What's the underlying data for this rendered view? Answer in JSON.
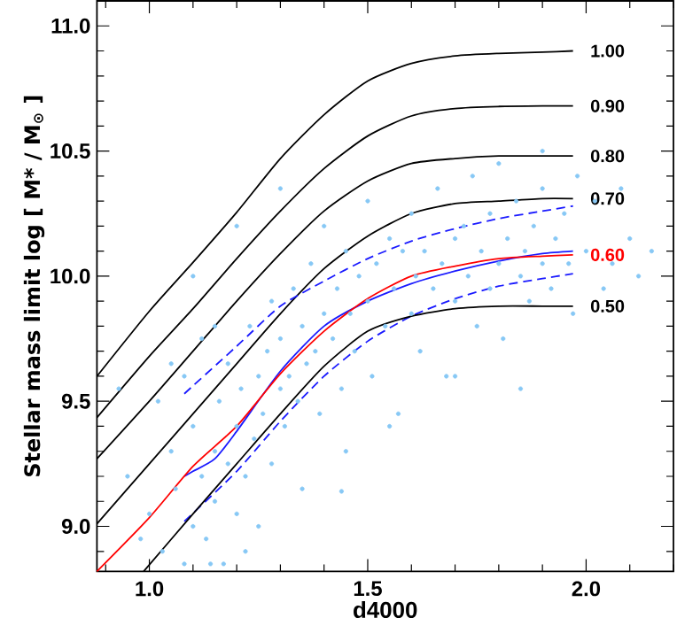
{
  "chart_data": {
    "type": "scatter",
    "xlabel": "d4000",
    "ylabel": "Stellar mass limit   log [ M* / M$_{⊙}$ ]",
    "xlim": [
      0.88,
      2.2
    ],
    "ylim": [
      8.82,
      11.1
    ],
    "xticks": [
      {
        "value": 0.9,
        "label": null
      },
      {
        "value": 1.0,
        "label": "1.0"
      },
      {
        "value": 1.1,
        "label": null
      },
      {
        "value": 1.2,
        "label": null
      },
      {
        "value": 1.3,
        "label": null
      },
      {
        "value": 1.4,
        "label": null
      },
      {
        "value": 1.5,
        "label": "1.5"
      },
      {
        "value": 1.6,
        "label": null
      },
      {
        "value": 1.7,
        "label": null
      },
      {
        "value": 1.8,
        "label": null
      },
      {
        "value": 1.9,
        "label": null
      },
      {
        "value": 2.0,
        "label": "2.0"
      },
      {
        "value": 2.1,
        "label": null
      },
      {
        "value": 2.2,
        "label": null
      }
    ],
    "yticks": [
      {
        "value": 8.9,
        "label": null
      },
      {
        "value": 9.0,
        "label": "9.0"
      },
      {
        "value": 9.1,
        "label": null
      },
      {
        "value": 9.2,
        "label": null
      },
      {
        "value": 9.3,
        "label": null
      },
      {
        "value": 9.4,
        "label": null
      },
      {
        "value": 9.5,
        "label": "9.5"
      },
      {
        "value": 9.6,
        "label": null
      },
      {
        "value": 9.7,
        "label": null
      },
      {
        "value": 9.8,
        "label": null
      },
      {
        "value": 9.9,
        "label": null
      },
      {
        "value": 10.0,
        "label": "10.0"
      },
      {
        "value": 10.1,
        "label": null
      },
      {
        "value": 10.2,
        "label": null
      },
      {
        "value": 10.3,
        "label": null
      },
      {
        "value": 10.4,
        "label": null
      },
      {
        "value": 10.5,
        "label": "10.5"
      },
      {
        "value": 10.6,
        "label": null
      },
      {
        "value": 10.7,
        "label": null
      },
      {
        "value": 10.8,
        "label": null
      },
      {
        "value": 10.9,
        "label": null
      },
      {
        "value": 11.0,
        "label": "11.0"
      }
    ],
    "grid": false,
    "series": [
      {
        "color": "#87c8f5",
        "marker": "circle",
        "x": [
          0.95,
          0.98,
          1.0,
          1.02,
          1.03,
          1.05,
          1.06,
          1.08,
          1.08,
          1.1,
          1.1,
          1.12,
          1.12,
          1.13,
          1.15,
          1.15,
          1.16,
          1.17,
          1.18,
          1.18,
          1.2,
          1.2,
          1.21,
          1.22,
          1.23,
          1.24,
          1.25,
          1.25,
          1.26,
          1.27,
          1.28,
          1.28,
          1.3,
          1.3,
          1.31,
          1.32,
          1.33,
          1.34,
          1.35,
          1.35,
          1.36,
          1.37,
          1.38,
          1.39,
          1.4,
          1.4,
          1.42,
          1.43,
          1.44,
          1.44,
          1.45,
          1.46,
          1.47,
          1.48,
          1.5,
          1.5,
          1.51,
          1.52,
          1.54,
          1.55,
          1.56,
          1.57,
          1.58,
          1.6,
          1.6,
          1.61,
          1.62,
          1.63,
          1.65,
          1.66,
          1.67,
          1.68,
          1.7,
          1.7,
          1.72,
          1.73,
          1.74,
          1.75,
          1.76,
          1.78,
          1.78,
          1.8,
          1.8,
          1.81,
          1.82,
          1.84,
          1.85,
          1.86,
          1.87,
          1.88,
          1.9,
          1.9,
          1.92,
          1.93,
          1.95,
          1.96,
          1.97,
          1.98,
          2.0,
          2.02,
          2.04,
          2.06,
          2.08,
          2.1,
          2.12,
          2.15,
          1.15,
          1.05,
          0.93,
          1.1,
          1.2,
          1.3,
          1.45,
          1.55,
          1.7,
          1.85,
          1.9,
          1.14,
          1.22
        ],
        "values": [
          9.2,
          8.95,
          9.05,
          9.5,
          8.9,
          9.3,
          9.15,
          8.85,
          9.6,
          9.0,
          9.4,
          9.2,
          9.75,
          8.95,
          9.3,
          9.1,
          9.5,
          8.85,
          9.25,
          9.65,
          9.4,
          9.05,
          9.55,
          9.2,
          9.8,
          9.35,
          9.6,
          9.0,
          9.45,
          9.7,
          9.25,
          9.9,
          9.55,
          9.75,
          9.4,
          9.6,
          9.95,
          9.5,
          9.8,
          9.15,
          9.65,
          10.05,
          9.7,
          9.45,
          9.85,
          10.2,
          9.75,
          9.95,
          9.55,
          9.14,
          10.1,
          9.85,
          9.7,
          10.0,
          9.9,
          10.3,
          9.6,
          10.05,
          9.8,
          10.15,
          9.95,
          9.45,
          10.1,
          9.85,
          10.25,
          10.0,
          9.7,
          10.1,
          9.95,
          10.35,
          10.05,
          9.6,
          10.15,
          9.9,
          10.2,
          10.0,
          10.4,
          9.8,
          10.1,
          10.25,
          9.95,
          10.05,
          10.45,
          9.75,
          10.15,
          10.3,
          10.0,
          10.1,
          9.9,
          10.2,
          10.35,
          10.05,
          9.95,
          10.15,
          10.25,
          10.05,
          9.85,
          10.4,
          10.1,
          10.3,
          9.95,
          10.05,
          10.35,
          10.15,
          10.0,
          10.1,
          9.8,
          9.65,
          9.55,
          10.0,
          10.2,
          10.35,
          9.3,
          9.4,
          9.6,
          9.55,
          10.5,
          8.85,
          8.9
        ]
      },
      {
        "type": "line",
        "name": "1.00",
        "color": "#000000",
        "marker": "none",
        "line_style": "solid",
        "x": [
          0.88,
          1.0,
          1.1,
          1.2,
          1.3,
          1.4,
          1.5,
          1.6,
          1.7,
          1.8,
          1.9,
          1.97
        ],
        "values": [
          9.6,
          9.86,
          10.055,
          10.255,
          10.47,
          10.645,
          10.78,
          10.85,
          10.88,
          10.89,
          10.895,
          10.9
        ]
      },
      {
        "type": "line",
        "name": "0.90",
        "color": "#000000",
        "marker": "none",
        "line_style": "solid",
        "x": [
          0.88,
          1.0,
          1.1,
          1.2,
          1.3,
          1.4,
          1.5,
          1.6,
          1.7,
          1.8,
          1.9,
          1.97
        ],
        "values": [
          9.435,
          9.68,
          9.87,
          10.07,
          10.26,
          10.43,
          10.56,
          10.64,
          10.67,
          10.678,
          10.68,
          10.68
        ]
      },
      {
        "type": "line",
        "name": "0.80",
        "color": "#000000",
        "marker": "none",
        "line_style": "solid",
        "x": [
          0.88,
          1.0,
          1.1,
          1.2,
          1.3,
          1.4,
          1.5,
          1.6,
          1.7,
          1.8,
          1.9,
          1.97
        ],
        "values": [
          9.27,
          9.5,
          9.7,
          9.9,
          10.09,
          10.26,
          10.38,
          10.45,
          10.47,
          10.48,
          10.48,
          10.48
        ]
      },
      {
        "type": "line",
        "name": "0.70",
        "color": "#000000",
        "marker": "none",
        "line_style": "solid",
        "x": [
          0.88,
          1.0,
          1.1,
          1.2,
          1.3,
          1.4,
          1.5,
          1.6,
          1.7,
          1.8,
          1.9,
          1.97
        ],
        "values": [
          9.01,
          9.25,
          9.45,
          9.65,
          9.85,
          10.03,
          10.16,
          10.25,
          10.29,
          10.3,
          10.31,
          10.31
        ]
      },
      {
        "type": "line",
        "color": "#1a1aff",
        "marker": "none",
        "line_style": "dashed",
        "x": [
          1.08,
          1.2,
          1.3,
          1.4,
          1.5,
          1.6,
          1.7,
          1.8,
          1.9,
          1.97
        ],
        "values": [
          9.53,
          9.72,
          9.88,
          9.98,
          10.07,
          10.14,
          10.19,
          10.23,
          10.26,
          10.28
        ]
      },
      {
        "type": "line",
        "color": "#1a1aff",
        "marker": "none",
        "line_style": "dashed",
        "x": [
          1.08,
          1.2,
          1.3,
          1.4,
          1.5,
          1.6,
          1.7,
          1.8,
          1.9,
          1.97
        ],
        "values": [
          9.02,
          9.22,
          9.42,
          9.6,
          9.74,
          9.84,
          9.91,
          9.96,
          9.99,
          10.01
        ]
      },
      {
        "type": "line",
        "color": "#1a1aff",
        "marker": "none",
        "line_style": "solid",
        "x": [
          1.08,
          1.1,
          1.15,
          1.2,
          1.3,
          1.4,
          1.5,
          1.6,
          1.7,
          1.8,
          1.9,
          1.97
        ],
        "values": [
          9.2,
          9.22,
          9.27,
          9.38,
          9.62,
          9.8,
          9.9,
          9.97,
          10.02,
          10.06,
          10.09,
          10.1
        ]
      },
      {
        "type": "line",
        "name": "0.60",
        "color": "#ff0000",
        "marker": "none",
        "line_style": "solid",
        "x": [
          0.88,
          1.0,
          1.1,
          1.2,
          1.3,
          1.4,
          1.5,
          1.6,
          1.7,
          1.8,
          1.9,
          1.97
        ],
        "values": [
          8.82,
          9.035,
          9.24,
          9.4,
          9.61,
          9.78,
          9.91,
          10.0,
          10.04,
          10.07,
          10.08,
          10.085
        ]
      },
      {
        "type": "line",
        "name": "0.50",
        "color": "#000000",
        "marker": "none",
        "line_style": "solid",
        "x": [
          0.987,
          1.1,
          1.2,
          1.3,
          1.4,
          1.5,
          1.6,
          1.7,
          1.8,
          1.9,
          1.97
        ],
        "values": [
          8.82,
          9.05,
          9.25,
          9.45,
          9.64,
          9.78,
          9.84,
          9.87,
          9.88,
          9.88,
          9.88
        ]
      }
    ]
  }
}
